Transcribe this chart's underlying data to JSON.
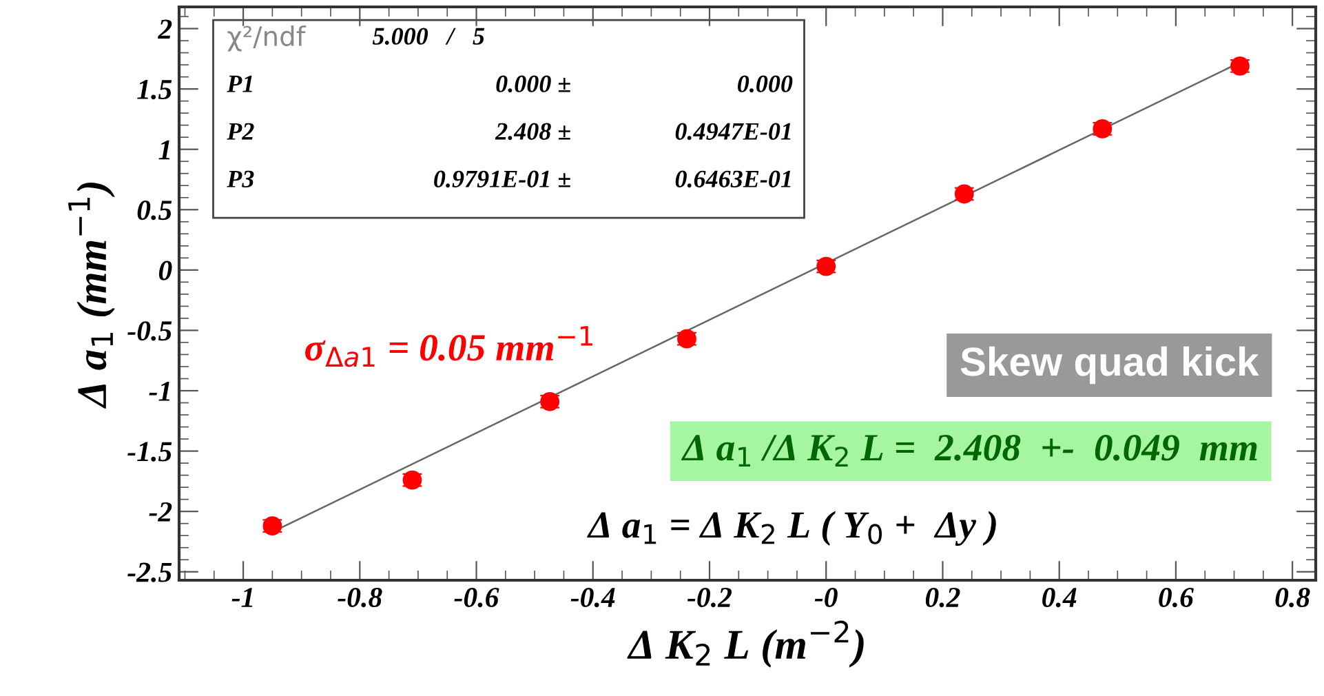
{
  "chart_data": {
    "type": "scatter",
    "xlabel": "Δ K$_{2}$ L (m$^{−2}$)",
    "ylabel": "Δ a$_{1}$ (mm$^{−1}$)",
    "xlim": [
      -1.11,
      0.84
    ],
    "ylim": [
      -2.57,
      2.18
    ],
    "xticks": [
      -1,
      -0.8,
      -0.6,
      -0.4,
      -0.2,
      {
        "value": 0,
        "label": "-0"
      },
      0.2,
      0.4,
      0.6,
      0.8
    ],
    "yticks": [
      -2.5,
      -2,
      -1.5,
      -1,
      -0.5,
      0,
      0.5,
      1,
      1.5,
      2
    ],
    "grid": false,
    "legend": false,
    "marker": "circle",
    "series": [
      {
        "color": "#ff0000",
        "x": [
          -0.95,
          -0.71,
          -0.474,
          -0.239,
          0,
          0.237,
          0.474,
          0.71
        ],
        "values": [
          -2.12,
          -1.74,
          -1.09,
          -0.57,
          0.03,
          0.63,
          1.17,
          1.69
        ],
        "errors": [
          0.05,
          0.05,
          0.05,
          0.05,
          0.05,
          0.05,
          0.05,
          0.05
        ]
      },
      {
        "type": "line",
        "color": "#666666",
        "x": [
          -0.95,
          0.71
        ],
        "values": [
          -2.17,
          1.72
        ],
        "marker": "none",
        "line_style": "solid"
      }
    ],
    "annotations": [
      "χ²/ndf",
      "5.000   /   5",
      "P1",
      "0.000 ±",
      "0.000",
      "P2",
      "2.408 ±",
      "0.4947E-01",
      "P3",
      "0.9791E-01 ±",
      "0.6463E-01",
      "σ$_{Δa1}$ = 0.05 mm$^{−1}$",
      "Skew quad kick",
      "Δ a$_{1}$ /Δ K$_{2}$ L =  2.408  +-  0.049  mm",
      "Δ a$_{1}$ = Δ K$_{2}$ L ( Y$_{0}$ +  Δy )"
    ]
  }
}
